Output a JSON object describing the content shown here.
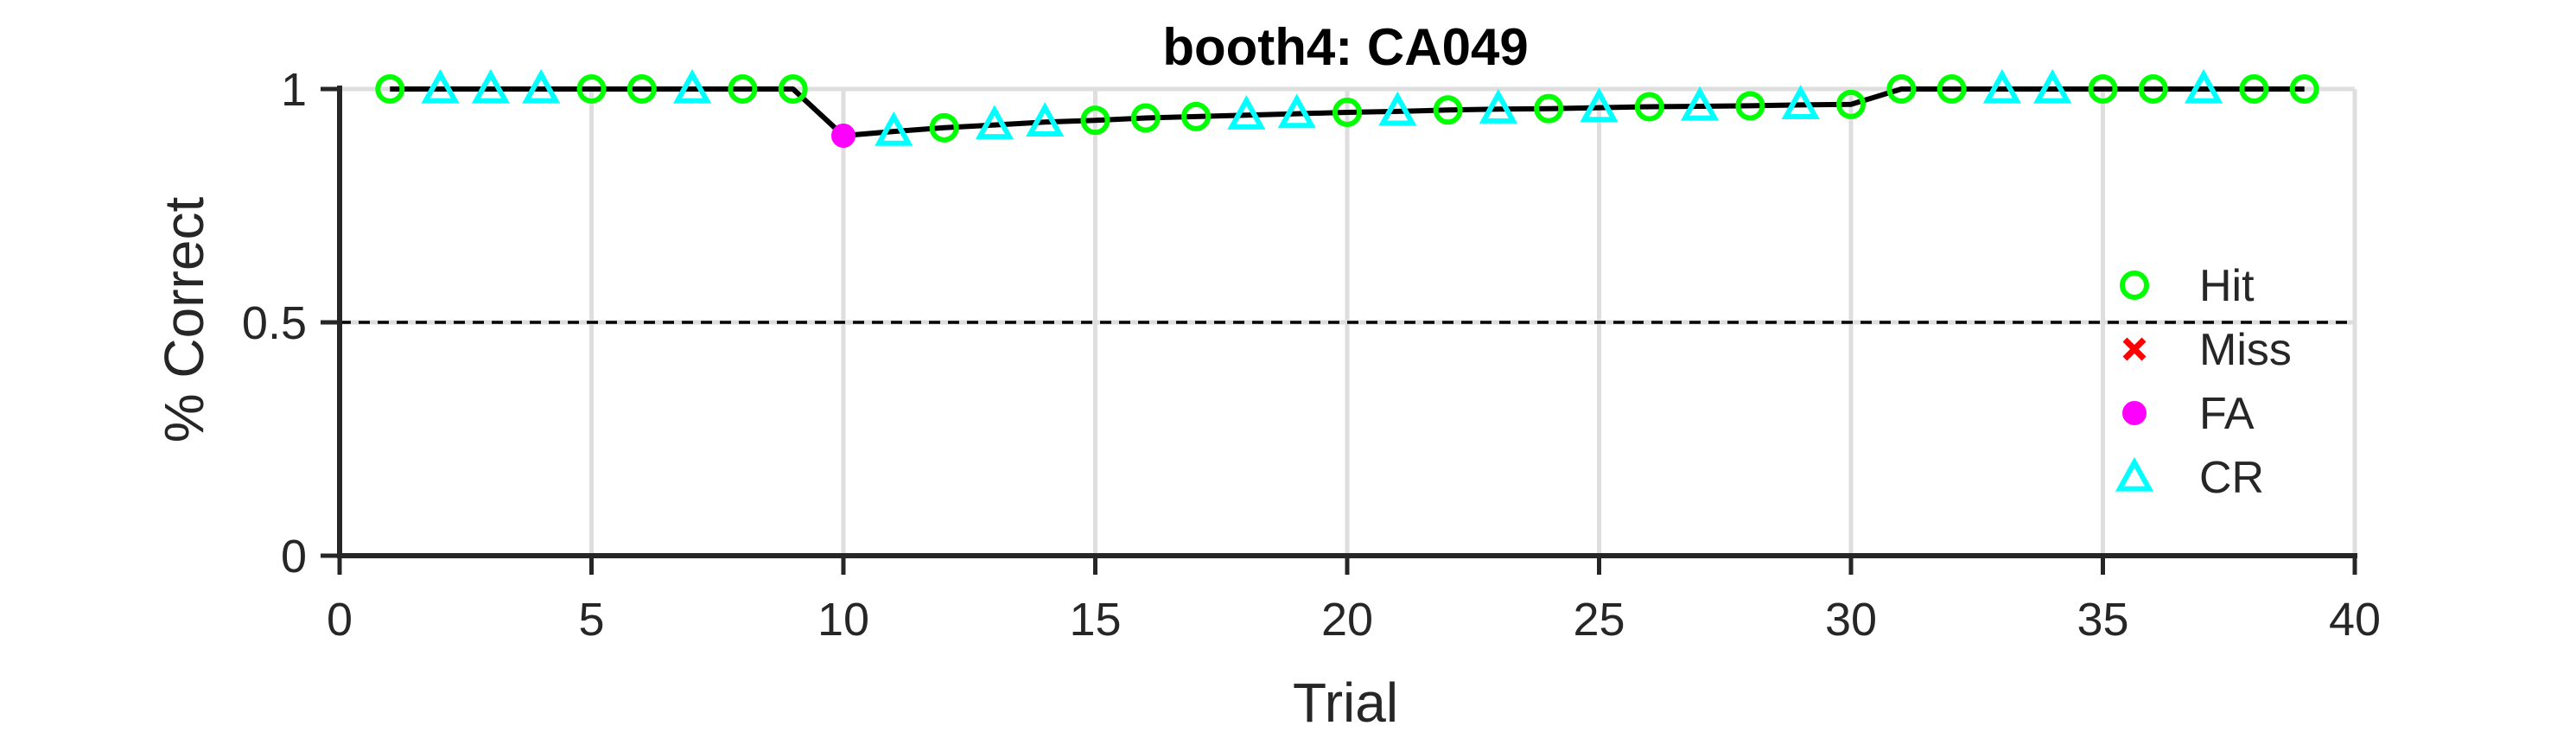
{
  "chart_data": {
    "type": "line",
    "title": "booth4: CA049",
    "xlabel": "Trial",
    "ylabel": "% Correct",
    "xlim": [
      0,
      40
    ],
    "ylim": [
      0,
      1
    ],
    "xticks": [
      0,
      5,
      10,
      15,
      20,
      25,
      30,
      35,
      40
    ],
    "yticks": [
      0,
      0.5,
      1
    ],
    "xtick_labels": [
      "0",
      "5",
      "10",
      "15",
      "20",
      "25",
      "30",
      "35",
      "40"
    ],
    "ytick_labels": [
      "0",
      "0.5",
      "1"
    ],
    "grid": true,
    "reference_line": {
      "y": 0.5,
      "style": "dashed"
    },
    "legend_position": "right",
    "legend": [
      {
        "name": "Hit",
        "marker": "circle-open",
        "color": "#00ff00"
      },
      {
        "name": "Miss",
        "marker": "x",
        "color": "#ff0000"
      },
      {
        "name": "FA",
        "marker": "circle-filled",
        "color": "#ff00ff"
      },
      {
        "name": "CR",
        "marker": "triangle-open",
        "color": "#00ffff"
      }
    ],
    "line_color": "#000000",
    "x": [
      1,
      2,
      3,
      4,
      5,
      6,
      7,
      8,
      9,
      10,
      11,
      12,
      13,
      14,
      15,
      16,
      17,
      18,
      19,
      20,
      21,
      22,
      23,
      24,
      25,
      26,
      27,
      28,
      29,
      30,
      31,
      32,
      33,
      34,
      35,
      36,
      37,
      38,
      39
    ],
    "y": [
      1,
      1,
      1,
      1,
      1,
      1,
      1,
      1,
      1,
      0.9,
      0.909,
      0.917,
      0.923,
      0.929,
      0.933,
      0.938,
      0.941,
      0.944,
      0.947,
      0.95,
      0.952,
      0.955,
      0.957,
      0.958,
      0.96,
      0.962,
      0.963,
      0.964,
      0.966,
      0.967,
      1,
      1,
      1,
      1,
      1,
      1,
      1,
      1,
      1
    ],
    "outcomes": [
      "Hit",
      "CR",
      "CR",
      "CR",
      "Hit",
      "Hit",
      "CR",
      "Hit",
      "Hit",
      "FA",
      "CR",
      "Hit",
      "CR",
      "CR",
      "Hit",
      "Hit",
      "Hit",
      "CR",
      "CR",
      "Hit",
      "CR",
      "Hit",
      "CR",
      "Hit",
      "CR",
      "Hit",
      "CR",
      "Hit",
      "CR",
      "Hit",
      "Hit",
      "Hit",
      "CR",
      "CR",
      "Hit",
      "Hit",
      "CR",
      "Hit",
      "Hit"
    ]
  }
}
